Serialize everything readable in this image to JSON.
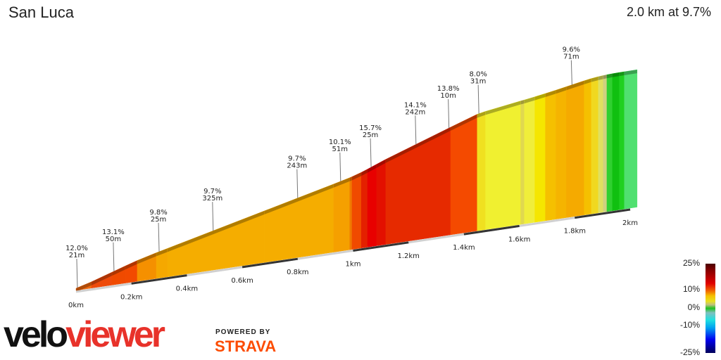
{
  "header": {
    "title": "San Luca",
    "summary": "2.0 km at 9.7%"
  },
  "chart_data": {
    "type": "area",
    "xlabel": "",
    "ylabel": "",
    "x_ticks": [
      "0km",
      "0.2km",
      "0.4km",
      "0.6km",
      "0.8km",
      "1km",
      "1.2km",
      "1.4km",
      "1.6km",
      "1.8km",
      "2km"
    ],
    "x_tick_values": [
      0,
      0.2,
      0.4,
      0.6,
      0.8,
      1.0,
      1.2,
      1.4,
      1.6,
      1.8,
      2.0
    ],
    "segments": [
      {
        "from": 0,
        "to": 0.056,
        "gradient": 11,
        "color": "#f26a10"
      },
      {
        "from": 0.056,
        "to": 0.13,
        "gradient": 13,
        "color": "#ee4a0a"
      },
      {
        "from": 0.13,
        "to": 0.178,
        "gradient": 13,
        "color": "#f04a00"
      },
      {
        "from": 0.178,
        "to": 0.221,
        "gradient": 12.5,
        "color": "#f24a00"
      },
      {
        "from": 0.221,
        "to": 0.29,
        "gradient": 10.5,
        "color": "#f59000"
      },
      {
        "from": 0.29,
        "to": 0.33,
        "gradient": 9.7,
        "color": "#f5a800"
      },
      {
        "from": 0.33,
        "to": 0.68,
        "gradient": 9.7,
        "color": "#f5ad00"
      },
      {
        "from": 0.68,
        "to": 0.93,
        "gradient": 9.7,
        "color": "#f5ad00"
      },
      {
        "from": 0.93,
        "to": 0.988,
        "gradient": 10.1,
        "color": "#f5a000"
      },
      {
        "from": 0.988,
        "to": 0.996,
        "gradient": 11,
        "color": "#f07a00"
      },
      {
        "from": 0.996,
        "to": 1.03,
        "gradient": 13,
        "color": "#f04a00"
      },
      {
        "from": 1.03,
        "to": 1.052,
        "gradient": 15,
        "color": "#e42000"
      },
      {
        "from": 1.052,
        "to": 1.085,
        "gradient": 16,
        "color": "#e80000"
      },
      {
        "from": 1.085,
        "to": 1.118,
        "gradient": 15.7,
        "color": "#e31000"
      },
      {
        "from": 1.118,
        "to": 1.352,
        "gradient": 14.1,
        "color": "#e62a00"
      },
      {
        "from": 1.352,
        "to": 1.448,
        "gradient": 13.8,
        "color": "#f44a00"
      },
      {
        "from": 1.448,
        "to": 1.478,
        "gradient": 8,
        "color": "#f0e020"
      },
      {
        "from": 1.478,
        "to": 1.605,
        "gradient": 6,
        "color": "#f0f030"
      },
      {
        "from": 1.605,
        "to": 1.618,
        "gradient": 5.5,
        "color": "#e0d850"
      },
      {
        "from": 1.618,
        "to": 1.656,
        "gradient": 6,
        "color": "#f0ee3a"
      },
      {
        "from": 1.656,
        "to": 1.694,
        "gradient": 6.5,
        "color": "#f5e600"
      },
      {
        "from": 1.694,
        "to": 1.732,
        "gradient": 7,
        "color": "#f5c000"
      },
      {
        "from": 1.732,
        "to": 1.77,
        "gradient": 7.5,
        "color": "#f5b400"
      },
      {
        "from": 1.77,
        "to": 1.834,
        "gradient": 7.5,
        "color": "#f5aa00"
      },
      {
        "from": 1.834,
        "to": 1.86,
        "gradient": 6.5,
        "color": "#f5c000"
      },
      {
        "from": 1.86,
        "to": 1.885,
        "gradient": 5,
        "color": "#f0d820"
      },
      {
        "from": 1.885,
        "to": 1.903,
        "gradient": 3.5,
        "color": "#e0e060"
      },
      {
        "from": 1.903,
        "to": 1.916,
        "gradient": 2.5,
        "color": "#d0d080"
      },
      {
        "from": 1.916,
        "to": 1.936,
        "gradient": 1.5,
        "color": "#30d030"
      },
      {
        "from": 1.936,
        "to": 1.961,
        "gradient": 1,
        "color": "#10c010"
      },
      {
        "from": 1.961,
        "to": 1.979,
        "gradient": 0.5,
        "color": "#20d020"
      },
      {
        "from": 1.979,
        "to": 2.025,
        "gradient": 0.3,
        "color": "#50e070"
      }
    ],
    "callouts": [
      {
        "km": 0.005,
        "grade": "12.0%",
        "length": "21m"
      },
      {
        "km": 0.137,
        "grade": "13.1%",
        "length": "50m"
      },
      {
        "km": 0.3,
        "grade": "9.8%",
        "length": "25m"
      },
      {
        "km": 0.495,
        "grade": "9.7%",
        "length": "325m"
      },
      {
        "km": 0.8,
        "grade": "9.7%",
        "length": "243m"
      },
      {
        "km": 0.955,
        "grade": "10.1%",
        "length": "51m"
      },
      {
        "km": 1.065,
        "grade": "15.7%",
        "length": "25m"
      },
      {
        "km": 1.227,
        "grade": "14.1%",
        "length": "242m"
      },
      {
        "km": 1.346,
        "grade": "13.8%",
        "length": "10m"
      },
      {
        "km": 1.454,
        "grade": "8.0%",
        "length": "31m"
      },
      {
        "km": 1.79,
        "grade": "9.6%",
        "length": "71m"
      }
    ],
    "legend": {
      "labels": [
        "25%",
        "10%",
        "0%",
        "-10%",
        "-25%"
      ],
      "values": [
        25,
        10,
        0,
        -10,
        -25
      ]
    }
  },
  "branding": {
    "logo_part1": "velo",
    "logo_part2": "viewer",
    "logo_color1": "#111111",
    "logo_color2": "#e8322a",
    "powered_by": "POWERED BY",
    "strava": "STRAVA",
    "strava_color": "#fc4c02"
  }
}
